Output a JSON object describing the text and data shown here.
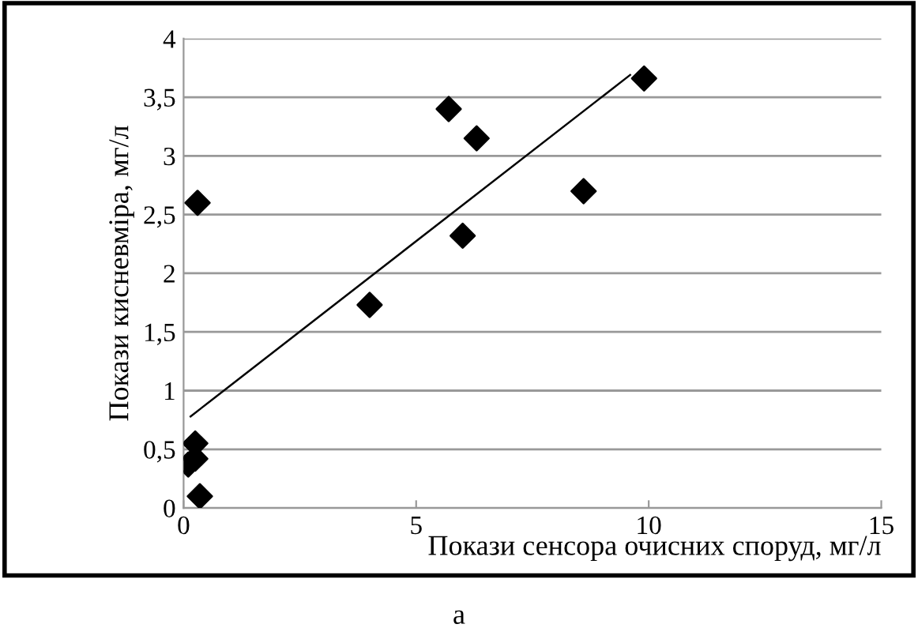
{
  "chart_data": {
    "type": "scatter",
    "xlabel": "Покази сенсора очисних споруд, мг/л",
    "ylabel": "Покази кисневміра, мг/л",
    "annotations": [
      "а"
    ],
    "xlim": [
      0,
      15
    ],
    "xticks": [
      0,
      5,
      10,
      15
    ],
    "ylim": [
      0,
      4
    ],
    "yticks": [
      0,
      {
        "value": 0.5,
        "label": "0,5"
      },
      1,
      {
        "value": 1.5,
        "label": "1,5"
      },
      2,
      {
        "value": 2.5,
        "label": "2,5"
      },
      3,
      {
        "value": 3.5,
        "label": "3,5"
      },
      4
    ],
    "grid": "y",
    "legend": false,
    "series": [
      {
        "color": "#000000",
        "marker": "diamond",
        "x": [
          0.35,
          0.25,
          0.25,
          0.1,
          0.3,
          4.0,
          5.7,
          6.3,
          6.0,
          8.6,
          9.9
        ],
        "values": [
          0.1,
          0.55,
          0.42,
          0.37,
          2.6,
          1.73,
          3.4,
          3.15,
          2.32,
          2.7,
          3.66
        ]
      },
      {
        "type": "line",
        "color": "#000000",
        "marker": "none",
        "x": [
          0.15,
          9.6
        ],
        "values": [
          0.78,
          3.69
        ]
      }
    ]
  }
}
